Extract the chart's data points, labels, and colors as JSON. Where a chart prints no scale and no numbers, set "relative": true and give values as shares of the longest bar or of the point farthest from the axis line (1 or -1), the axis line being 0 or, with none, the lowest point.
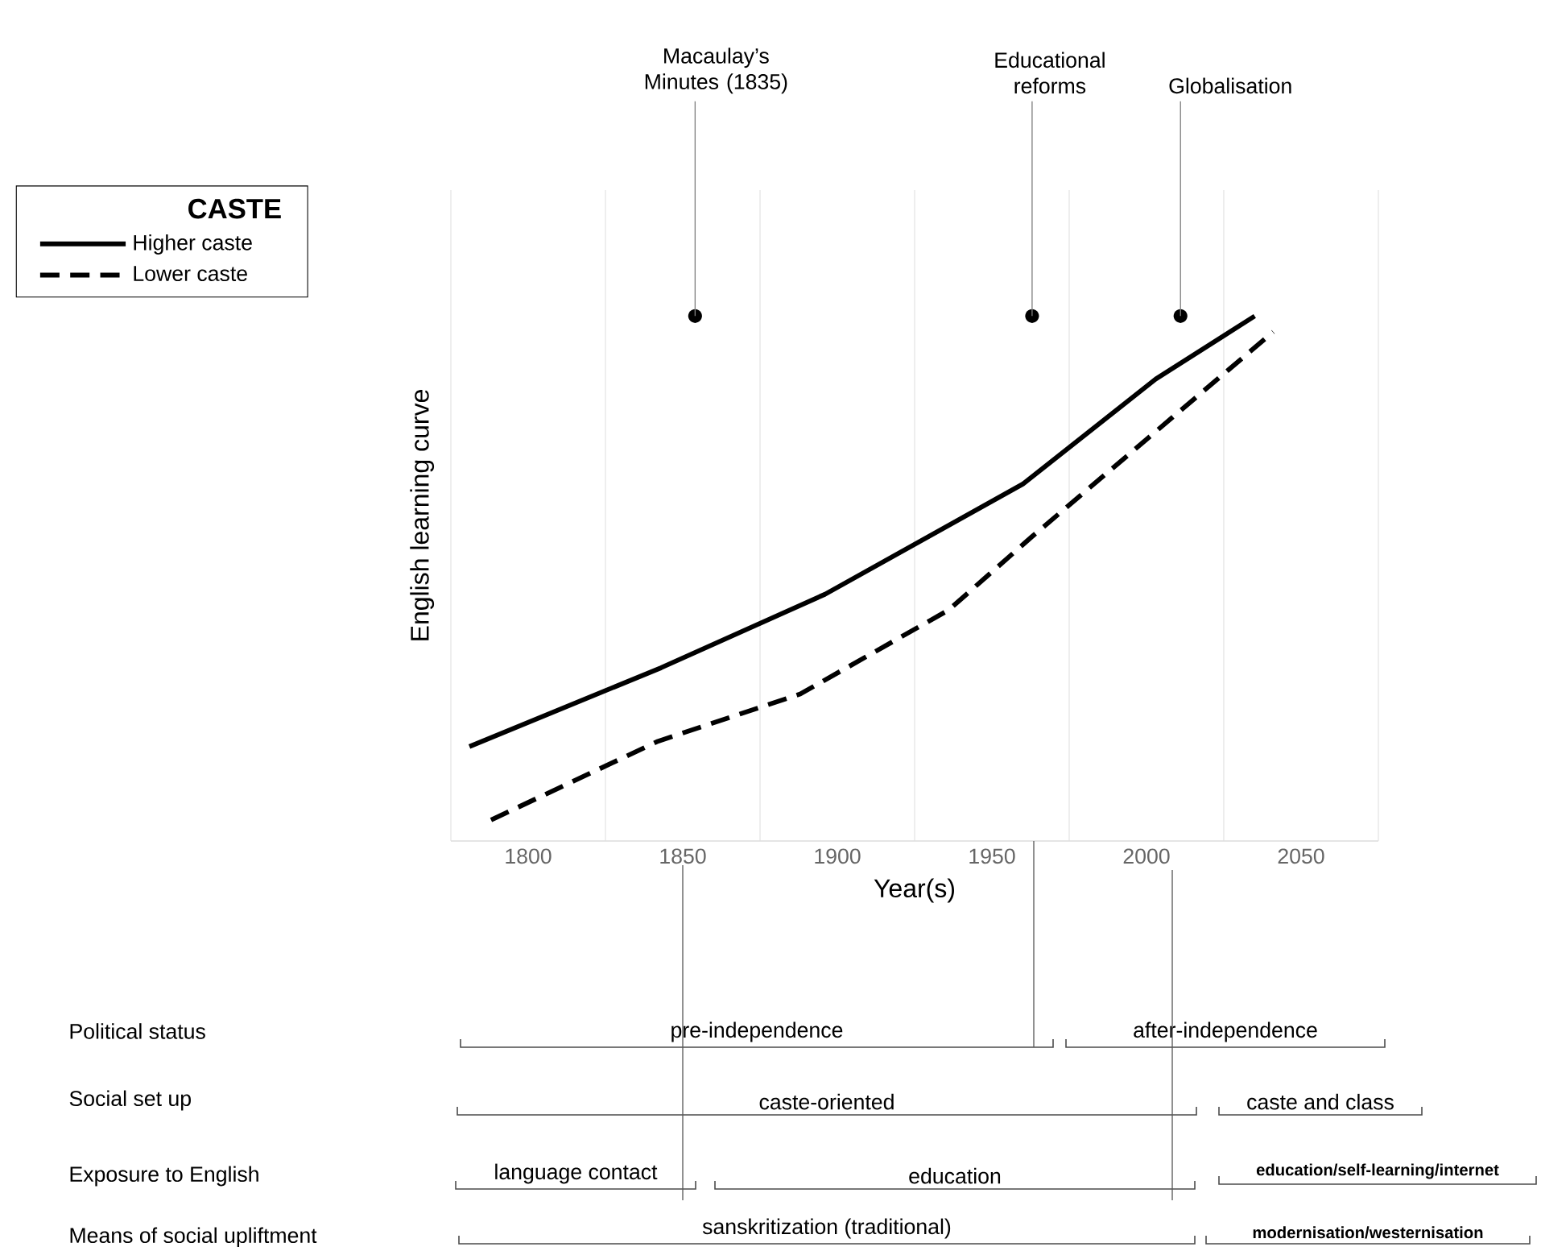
{
  "chart_data": {
    "type": "line",
    "relative": true,
    "xlabel": "Year(s)",
    "ylabel": "English learning curve",
    "legend_title": "CASTE",
    "legend": "top left",
    "grid": "x",
    "xlim": [
      1775,
      2075
    ],
    "xticks": [
      {
        "value": 1775,
        "label": null
      },
      1800,
      {
        "value": 1825,
        "label": null
      },
      1850,
      {
        "value": 1875,
        "label": null
      },
      1900,
      {
        "value": 1925,
        "label": null
      },
      1950,
      {
        "value": 1975,
        "label": null
      },
      2000,
      {
        "value": 2025,
        "label": null
      },
      2050,
      {
        "value": 2075,
        "label": null
      }
    ],
    "series": [
      {
        "name": "Higher caste",
        "color": "#000000",
        "line_style": "solid",
        "x": [
          1781,
          1843,
          1896,
          1960,
          2003,
          2035
        ],
        "values": [
          0.18,
          0.33,
          0.47,
          0.68,
          0.88,
          1.0
        ]
      },
      {
        "name": "Lower caste",
        "color": "#000000",
        "line_style": "dashed",
        "x": [
          1788,
          1842,
          1888,
          1936,
          1963,
          2011,
          2041
        ],
        "values": [
          0.04,
          0.19,
          0.28,
          0.44,
          0.58,
          0.82,
          0.97
        ]
      }
    ],
    "annotations": [
      {
        "text": "Macaulay’s Minutes (1835)",
        "x": 1854,
        "y": 1.0
      },
      {
        "text": "Educational reforms",
        "x": 1963,
        "y": 1.0
      },
      {
        "text": "Globalisation",
        "x": 2011,
        "y": 1.0
      },
      "Political status",
      "pre-independence",
      "after-independence",
      "Social set up",
      "caste-oriented",
      "caste and class",
      "Exposure to English",
      "language contact",
      "education",
      "education/self-learning/internet",
      "Means of social upliftment",
      "sanskritization (traditional)",
      "modernisation/westernisation"
    ]
  }
}
